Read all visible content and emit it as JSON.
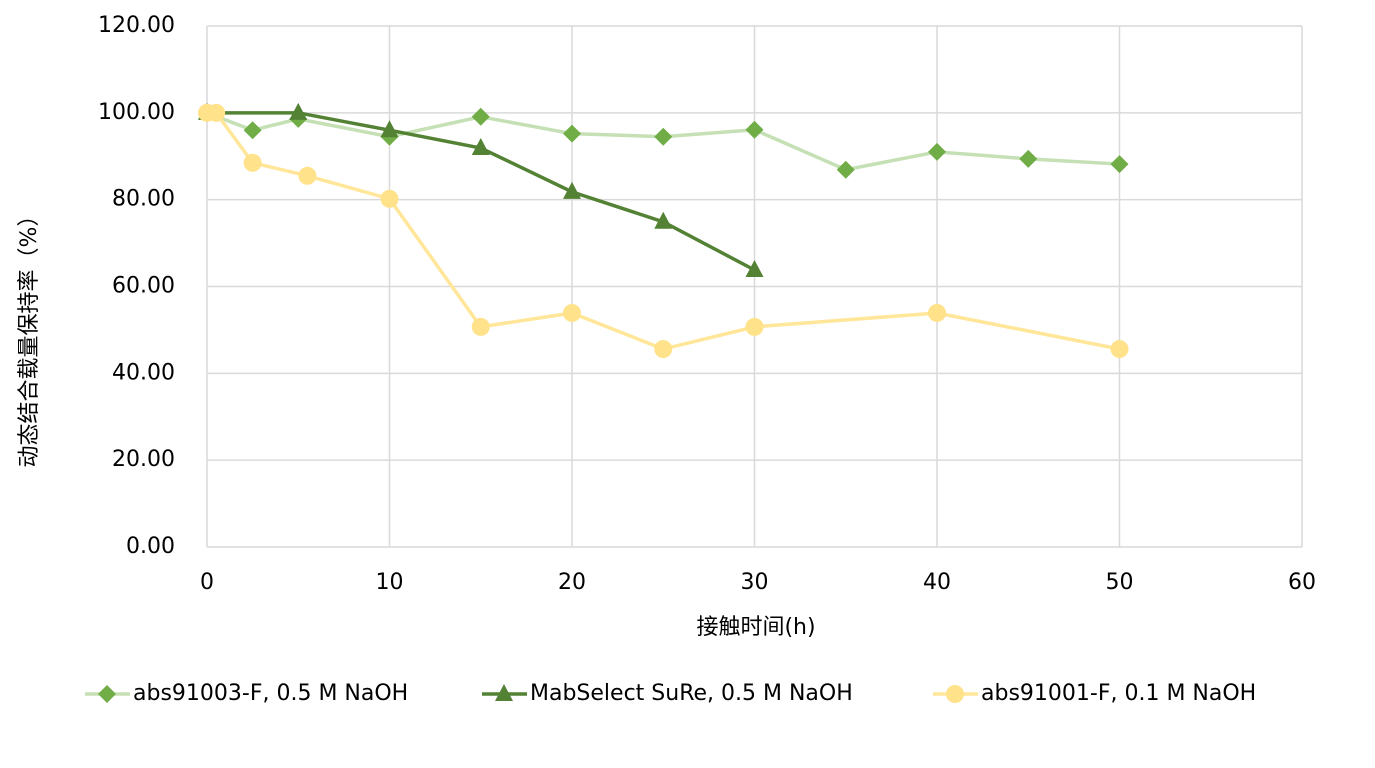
{
  "chart_data": {
    "type": "line",
    "xlabel": "接触时间(h)",
    "ylabel": "动态结合载量保持率（%）",
    "xlim": [
      0,
      60
    ],
    "xticks": [
      0,
      10,
      20,
      30,
      40,
      50,
      60
    ],
    "ylim": [
      0,
      120
    ],
    "yticks": [
      {
        "value": 0,
        "label": "0.00"
      },
      {
        "value": 20,
        "label": "20.00"
      },
      {
        "value": 40,
        "label": "40.00"
      },
      {
        "value": 60,
        "label": "60.00"
      },
      {
        "value": 80,
        "label": "80.00"
      },
      {
        "value": 100,
        "label": "100.00"
      },
      {
        "value": 120,
        "label": "120.00"
      }
    ],
    "grid": true,
    "legend": "bottom",
    "series": [
      {
        "name": "abs91003-F, 0.5 M NaOH",
        "color": "#c5e0b4",
        "marker_color": "#70ad47",
        "marker": "diamond",
        "x": [
          0,
          2.5,
          5,
          10,
          15,
          20,
          25,
          30,
          35,
          40,
          45,
          50
        ],
        "values": [
          100,
          96,
          98.6,
          94.5,
          99.1,
          95.2,
          94.5,
          96.1,
          86.9,
          91,
          89.4,
          88.2
        ]
      },
      {
        "name": "MabSelect SuRe, 0.5 M NaOH",
        "color": "#548235",
        "marker_color": "#548235",
        "marker": "triangle",
        "x": [
          0,
          5,
          10,
          15,
          20,
          25,
          30
        ],
        "values": [
          100,
          100,
          96,
          91.9,
          81.8,
          74.9,
          63.8
        ]
      },
      {
        "name": "abs91001-F, 0.1 M NaOH",
        "color": "#ffe699",
        "marker_color": "#ffe28a",
        "marker": "circle",
        "x": [
          0,
          0.5,
          2.5,
          5.5,
          10,
          15,
          20,
          25,
          30,
          40,
          50
        ],
        "values": [
          100,
          100,
          88.5,
          85.5,
          80.2,
          50.7,
          53.9,
          45.6,
          50.7,
          53.9,
          45.6
        ]
      }
    ]
  }
}
